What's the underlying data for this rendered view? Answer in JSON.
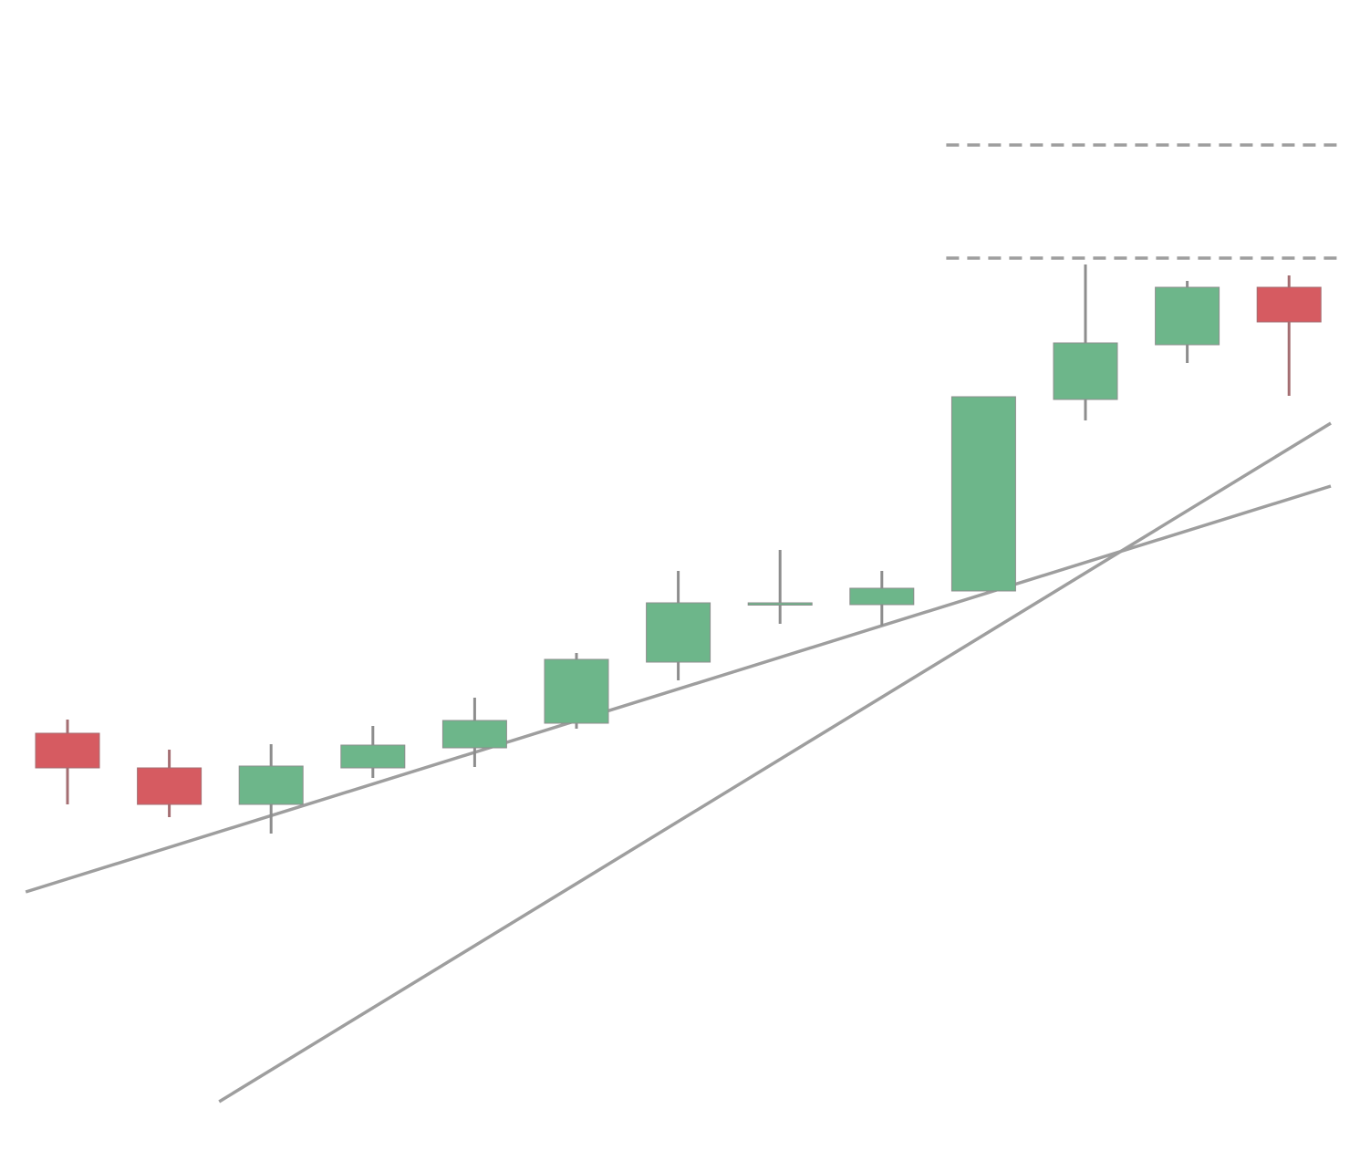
{
  "chart_data": {
    "type": "candlestick",
    "ylim": [
      0,
      1284
    ],
    "grid": false,
    "legend": "none",
    "colors": {
      "up": "#6db68a",
      "down": "#d65b61",
      "up_outline": "#8d8d8d",
      "down_outline": "#a46e72",
      "line": "#9e9e9e"
    },
    "candles": [
      {
        "open": 480,
        "close": 442,
        "high": 495,
        "low": 402
      },
      {
        "open": 442,
        "close": 402,
        "high": 462,
        "low": 388
      },
      {
        "open": 402,
        "close": 444,
        "high": 468,
        "low": 370
      },
      {
        "open": 442,
        "close": 467,
        "high": 488,
        "low": 431
      },
      {
        "open": 464,
        "close": 494,
        "high": 519,
        "low": 443
      },
      {
        "open": 491,
        "close": 561,
        "high": 568,
        "low": 485
      },
      {
        "open": 558,
        "close": 623,
        "high": 658,
        "low": 538
      },
      {
        "open": 622,
        "close": 623,
        "high": 681,
        "low": 600
      },
      {
        "open": 621,
        "close": 639,
        "high": 658,
        "low": 598
      },
      {
        "open": 636,
        "close": 849,
        "high": 849,
        "low": 636
      },
      {
        "open": 846,
        "close": 908,
        "high": 994,
        "low": 823
      },
      {
        "open": 906,
        "close": 969,
        "high": 976,
        "low": 886
      },
      {
        "open": 969,
        "close": 931,
        "high": 982,
        "low": 850
      }
    ],
    "trendlines": [
      {
        "x1": -0.5,
        "y1": 306,
        "x2": 12.5,
        "y2": 751
      },
      {
        "x1": 1.4,
        "y1": 76,
        "x2": 12.5,
        "y2": 820
      }
    ],
    "horizontal_levels": [
      {
        "y": 1001,
        "x_from": 9.0,
        "x_to": 12.5
      },
      {
        "y": 1125,
        "x_from": 9.0,
        "x_to": 12.5
      }
    ]
  }
}
